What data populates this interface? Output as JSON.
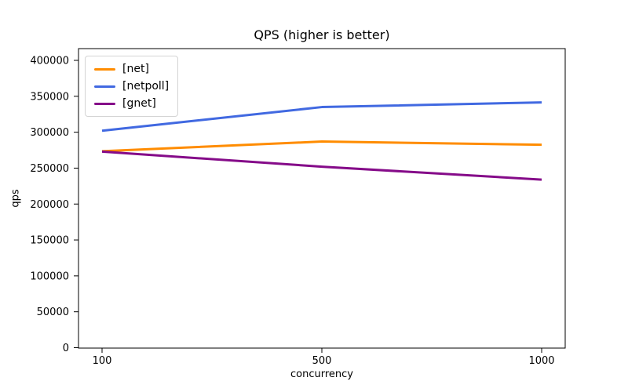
{
  "figure": {
    "background": "#ffffff"
  },
  "chart_data": {
    "type": "line",
    "title": "QPS (higher is better)",
    "xlabel": "concurrency",
    "ylabel": "qps",
    "categories": [
      "100",
      "500",
      "1000"
    ],
    "series": [
      {
        "name": "[net]",
        "color": "#ff8c00",
        "values": [
          273500,
          287000,
          282500
        ]
      },
      {
        "name": "[netpoll]",
        "color": "#4169e1",
        "values": [
          302000,
          335000,
          341500
        ]
      },
      {
        "name": "[gnet]",
        "color": "#850b89",
        "values": [
          273000,
          252000,
          234000
        ]
      }
    ],
    "yticks": [
      0,
      50000,
      100000,
      150000,
      200000,
      250000,
      300000,
      350000,
      400000
    ],
    "ylim": [
      0,
      420000
    ],
    "grid": false,
    "legend_position": "upper-left",
    "axis_color": "#000000",
    "line_width": 3
  }
}
